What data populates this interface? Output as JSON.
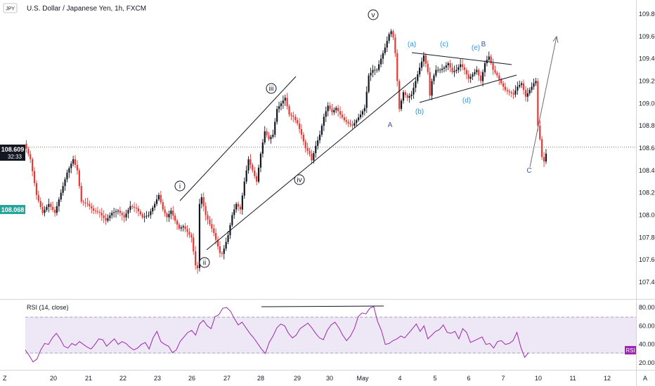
{
  "header": {
    "symbol_badge": "JPY",
    "title": "U.S. Dollar / Japanese Yen, 1h, FXCM"
  },
  "price_tag": {
    "price": "108.609",
    "timer": "32:33"
  },
  "prev_tag": {
    "price": "108.068"
  },
  "rsi_pane": {
    "label": "RSI (14, close)",
    "badge": "RSI"
  },
  "footer": {
    "left_icon": "Z",
    "right_icon": "A"
  },
  "colors": {
    "up": "#131722",
    "down": "#e53935",
    "rsi_line": "#9c27b0",
    "rsi_band": "#ede7f6",
    "wave_cyan": "#2196f3",
    "wave_navy": "#3f51b5",
    "price_tag": "#131722",
    "prev_tag": "#26a69a",
    "rsi_badge": "#9c27b0"
  },
  "chart_data": [
    {
      "type": "candlestick",
      "title": "U.S. Dollar / Japanese Yen, 1h, FXCM",
      "x_ticks": [
        "20",
        "21",
        "22",
        "23",
        "26",
        "27",
        "28",
        "29",
        "30",
        "May",
        "4",
        "5",
        "6",
        "7",
        "10",
        "11",
        "12"
      ],
      "y_ticks": [
        "109.800",
        "109.600",
        "109.400",
        "109.200",
        "109.000",
        "108.800",
        "108.600",
        "108.400",
        "108.200",
        "108.000",
        "107.800",
        "107.600",
        "107.400"
      ],
      "ylim": [
        107.28,
        109.88
      ],
      "last_price": 108.609,
      "prev_level": 108.068,
      "path_points": [
        [
          0,
          108.64
        ],
        [
          3,
          108.5
        ],
        [
          6,
          108.18
        ],
        [
          9,
          108.02
        ],
        [
          12,
          108.1
        ],
        [
          15,
          108.02
        ],
        [
          18,
          108.2
        ],
        [
          21,
          108.38
        ],
        [
          24,
          108.5
        ],
        [
          26,
          108.4
        ],
        [
          28,
          108.12
        ],
        [
          31,
          108.1
        ],
        [
          34,
          108.04
        ],
        [
          37,
          108.02
        ],
        [
          40,
          107.95
        ],
        [
          43,
          108.02
        ],
        [
          46,
          108.04
        ],
        [
          49,
          107.98
        ],
        [
          52,
          108.08
        ],
        [
          55,
          108.06
        ],
        [
          58,
          107.98
        ],
        [
          61,
          108.0
        ],
        [
          64,
          108.1
        ],
        [
          66,
          108.18
        ],
        [
          68,
          108.05
        ],
        [
          70,
          107.98
        ],
        [
          72,
          108.04
        ],
        [
          74,
          107.95
        ],
        [
          76,
          107.88
        ],
        [
          78,
          107.9
        ],
        [
          80,
          107.85
        ],
        [
          82,
          107.8
        ],
        [
          84,
          107.55
        ],
        [
          85.2,
          107.52
        ],
        [
          86,
          108.1
        ],
        [
          87,
          108.16
        ],
        [
          89,
          108.0
        ],
        [
          91,
          107.92
        ],
        [
          93,
          107.84
        ],
        [
          95,
          107.72
        ],
        [
          96.5,
          107.63
        ],
        [
          98,
          107.7
        ],
        [
          100,
          107.82
        ],
        [
          102,
          108.0
        ],
        [
          104,
          108.1
        ],
        [
          106,
          108.05
        ],
        [
          108,
          108.3
        ],
        [
          110,
          108.5
        ],
        [
          112,
          108.4
        ],
        [
          114,
          108.3
        ],
        [
          116,
          108.55
        ],
        [
          118,
          108.75
        ],
        [
          120,
          108.68
        ],
        [
          122,
          108.72
        ],
        [
          124,
          108.95
        ],
        [
          126,
          109.0
        ],
        [
          128,
          109.05
        ],
        [
          130,
          108.9
        ],
        [
          132,
          108.88
        ],
        [
          134,
          108.82
        ],
        [
          136,
          108.72
        ],
        [
          138,
          108.6
        ],
        [
          140,
          108.55
        ],
        [
          141,
          108.49
        ],
        [
          143,
          108.62
        ],
        [
          145,
          108.72
        ],
        [
          147,
          108.88
        ],
        [
          149,
          108.98
        ],
        [
          151,
          108.92
        ],
        [
          153,
          108.96
        ],
        [
          155,
          108.9
        ],
        [
          157,
          108.85
        ],
        [
          159,
          108.82
        ],
        [
          161,
          108.8
        ],
        [
          163,
          108.85
        ],
        [
          165,
          108.9
        ],
        [
          167,
          108.96
        ],
        [
          169,
          109.25
        ],
        [
          171,
          109.3
        ],
        [
          173,
          109.3
        ],
        [
          175,
          109.4
        ],
        [
          177,
          109.5
        ],
        [
          179,
          109.62
        ],
        [
          180.5,
          109.66
        ],
        [
          182,
          109.45
        ],
        [
          183,
          109.2
        ],
        [
          184,
          108.95
        ],
        [
          186,
          109.1
        ],
        [
          188,
          109.05
        ],
        [
          190,
          109.08
        ],
        [
          192,
          109.2
        ],
        [
          194,
          109.32
        ],
        [
          196,
          109.43
        ],
        [
          198,
          109.28
        ],
        [
          199,
          109.07
        ],
        [
          200,
          109.2
        ],
        [
          202,
          109.3
        ],
        [
          204,
          109.3
        ],
        [
          206,
          109.32
        ],
        [
          208,
          109.36
        ],
        [
          210,
          109.28
        ],
        [
          212,
          109.3
        ],
        [
          214,
          109.35
        ],
        [
          216,
          109.3
        ],
        [
          218,
          109.22
        ],
        [
          220,
          109.26
        ],
        [
          222,
          109.3
        ],
        [
          224,
          109.2
        ],
        [
          226,
          109.36
        ],
        [
          228,
          109.42
        ],
        [
          230,
          109.3
        ],
        [
          232,
          109.25
        ],
        [
          234,
          109.18
        ],
        [
          236,
          109.12
        ],
        [
          238,
          109.1
        ],
        [
          240,
          109.08
        ],
        [
          242,
          109.15
        ],
        [
          244,
          109.18
        ],
        [
          246,
          109.06
        ],
        [
          248,
          109.12
        ],
        [
          250,
          109.18
        ],
        [
          251,
          109.2
        ],
        [
          252,
          108.8
        ],
        [
          253,
          108.68
        ],
        [
          254,
          108.52
        ],
        [
          255,
          108.48
        ],
        [
          256,
          108.55
        ]
      ]
    },
    {
      "type": "line",
      "title": "RSI (14, close)",
      "y_ticks": [
        "80.00",
        "60.00",
        "40.00",
        "20.00"
      ],
      "ylim": [
        13,
        84
      ],
      "band": [
        30,
        70
      ],
      "values": [
        34,
        28,
        21,
        24,
        34,
        41,
        40,
        47,
        52,
        46,
        38,
        36,
        41,
        39,
        43,
        40,
        37,
        35,
        40,
        46,
        45,
        38,
        42,
        46,
        40,
        43,
        41,
        37,
        34,
        36,
        40,
        42,
        35,
        47,
        54,
        43,
        40,
        38,
        31,
        34,
        43,
        48,
        53,
        55,
        50,
        62,
        66,
        60,
        57,
        70,
        72,
        79,
        80,
        76,
        68,
        61,
        64,
        58,
        52,
        47,
        41,
        35,
        30,
        42,
        49,
        58,
        62,
        60,
        52,
        47,
        50,
        57,
        60,
        63,
        58,
        52,
        47,
        45,
        55,
        61,
        64,
        58,
        50,
        44,
        49,
        57,
        70,
        74,
        73,
        79,
        81,
        65,
        55,
        40,
        41,
        44,
        46,
        49,
        47,
        52,
        57,
        62,
        54,
        60,
        46,
        50,
        54,
        56,
        61,
        53,
        52,
        54,
        46,
        57,
        53,
        42,
        44,
        46,
        48,
        40,
        41,
        36,
        43,
        44,
        40,
        41,
        44,
        53,
        37,
        26,
        31
      ]
    }
  ]
}
